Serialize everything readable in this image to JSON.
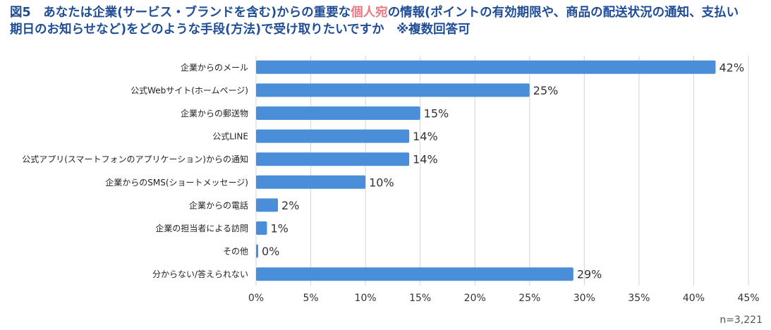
{
  "header": {
    "figure_label": "図5",
    "title_part1": "あなたは企業(サービス・ブランドを含む)からの重要な",
    "title_highlight": "個人宛",
    "title_part2": "の情報(ポイントの有効期限や、商品の配送状況の通知、支払い",
    "title_line2": "期日のお知らせなど)をどのような手段(方法)で受け取りたいですか　※複数回答可"
  },
  "sample_note": "n=3,221",
  "colors": {
    "bar": "#4a8ed9",
    "grid": "#d4d4d4",
    "title": "#1f4e96",
    "highlight": "#e97a84"
  },
  "chart_data": {
    "type": "bar",
    "orientation": "horizontal",
    "categories": [
      "企業からのメール",
      "公式Webサイト(ホームページ)",
      "企業からの郵送物",
      "公式LINE",
      "公式アプリ(スマートフォンのアプリケーション)からの通知",
      "企業からのSMS(ショートメッセージ)",
      "企業からの電話",
      "企業の担当者による訪問",
      "その他",
      "分からない/答えられない"
    ],
    "values": [
      42,
      25,
      15,
      14,
      14,
      10,
      2,
      1,
      0,
      29
    ],
    "value_labels": [
      "42%",
      "25%",
      "15%",
      "14%",
      "14%",
      "10%",
      "2%",
      "1%",
      "0%",
      "29%"
    ],
    "xlim": [
      0,
      45
    ],
    "x_ticks": [
      0,
      5,
      10,
      15,
      20,
      25,
      30,
      35,
      40,
      45
    ],
    "x_tick_labels": [
      "0%",
      "5%",
      "10%",
      "15%",
      "20%",
      "25%",
      "30%",
      "35%",
      "40%",
      "45%"
    ],
    "grid": true,
    "legend": "none"
  }
}
